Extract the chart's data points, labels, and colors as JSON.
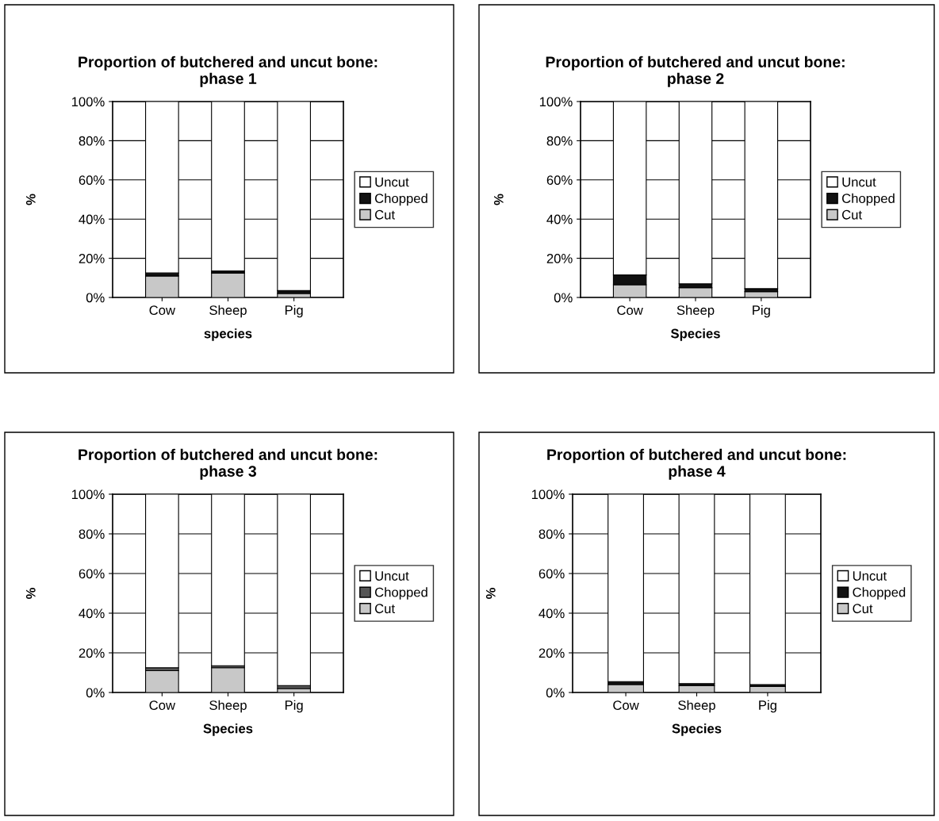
{
  "chart_data": [
    {
      "type": "bar",
      "stacked": true,
      "title": "Proportion of butchered and uncut bone:\nphase 1",
      "xlabel": "species",
      "ylabel": "%",
      "categories": [
        "Cow",
        "Sheep",
        "Pig"
      ],
      "legend": "right",
      "grid": "y",
      "ylim": [
        0,
        100
      ],
      "yticks": [
        {
          "value": 0,
          "label": "0%"
        },
        {
          "value": 20,
          "label": "20%"
        },
        {
          "value": 40,
          "label": "40%"
        },
        {
          "value": 60,
          "label": "60%"
        },
        {
          "value": 80,
          "label": "80%"
        },
        {
          "value": 100,
          "label": "100%"
        }
      ],
      "series": [
        {
          "name": "Cut",
          "color": "#c8c8c8",
          "values": [
            11,
            12.5,
            2
          ]
        },
        {
          "name": "Chopped",
          "color": "#111111",
          "values": [
            1.5,
            1,
            1.5
          ]
        },
        {
          "name": "Uncut",
          "color": "#ffffff",
          "values": [
            87.5,
            86.5,
            96.5
          ]
        }
      ]
    },
    {
      "type": "bar",
      "stacked": true,
      "title": "Proportion of butchered and uncut bone:\nphase 2",
      "xlabel": "Species",
      "ylabel": "%",
      "categories": [
        "Cow",
        "Sheep",
        "Pig"
      ],
      "legend": "right",
      "grid": "y",
      "ylim": [
        0,
        100
      ],
      "yticks": [
        {
          "value": 0,
          "label": "0%"
        },
        {
          "value": 20,
          "label": "20%"
        },
        {
          "value": 40,
          "label": "40%"
        },
        {
          "value": 60,
          "label": "60%"
        },
        {
          "value": 80,
          "label": "80%"
        },
        {
          "value": 100,
          "label": "100%"
        }
      ],
      "series": [
        {
          "name": "Cut",
          "color": "#c8c8c8",
          "values": [
            6.5,
            5,
            3
          ]
        },
        {
          "name": "Chopped",
          "color": "#111111",
          "values": [
            5,
            2,
            1.5
          ]
        },
        {
          "name": "Uncut",
          "color": "#ffffff",
          "values": [
            88.5,
            93,
            95.5
          ]
        }
      ]
    },
    {
      "type": "bar",
      "stacked": true,
      "title": "Proportion of butchered and uncut bone:\nphase 3",
      "xlabel": "Species",
      "ylabel": "%",
      "categories": [
        "Cow",
        "Sheep",
        "Pig"
      ],
      "legend": "right",
      "grid": "y",
      "ylim": [
        0,
        100
      ],
      "yticks": [
        {
          "value": 0,
          "label": "0%"
        },
        {
          "value": 20,
          "label": "20%"
        },
        {
          "value": 40,
          "label": "40%"
        },
        {
          "value": 60,
          "label": "60%"
        },
        {
          "value": 80,
          "label": "80%"
        },
        {
          "value": 100,
          "label": "100%"
        }
      ],
      "series": [
        {
          "name": "Cut",
          "color": "#c8c8c8",
          "values": [
            11,
            12.5,
            2
          ]
        },
        {
          "name": "Chopped",
          "color": "#555555",
          "values": [
            1.5,
            1,
            1.5
          ]
        },
        {
          "name": "Uncut",
          "color": "#ffffff",
          "values": [
            87.5,
            86.5,
            96.5
          ]
        }
      ]
    },
    {
      "type": "bar",
      "stacked": true,
      "title": "Proportion of butchered and uncut bone:\nphase 4",
      "xlabel": "Species",
      "ylabel": "%",
      "categories": [
        "Cow",
        "Sheep",
        "Pig"
      ],
      "legend": "right",
      "grid": "y",
      "ylim": [
        0,
        100
      ],
      "yticks": [
        {
          "value": 0,
          "label": "0%"
        },
        {
          "value": 20,
          "label": "20%"
        },
        {
          "value": 40,
          "label": "40%"
        },
        {
          "value": 60,
          "label": "60%"
        },
        {
          "value": 80,
          "label": "80%"
        },
        {
          "value": 100,
          "label": "100%"
        }
      ],
      "series": [
        {
          "name": "Cut",
          "color": "#c8c8c8",
          "values": [
            4,
            3.5,
            3
          ]
        },
        {
          "name": "Chopped",
          "color": "#111111",
          "values": [
            1.5,
            1,
            1
          ]
        },
        {
          "name": "Uncut",
          "color": "#ffffff",
          "values": [
            94.5,
            95.5,
            96
          ]
        }
      ]
    }
  ]
}
